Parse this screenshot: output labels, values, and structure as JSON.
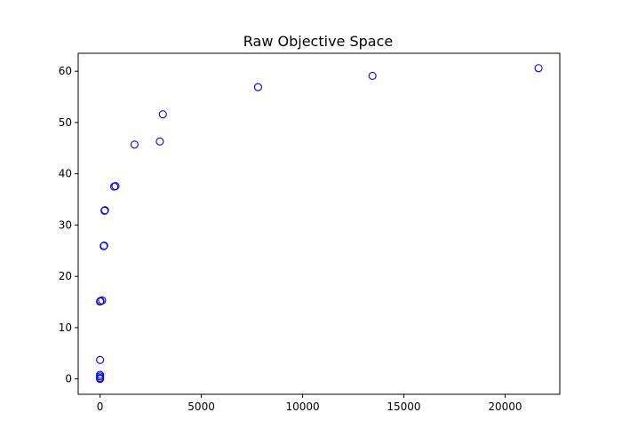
{
  "chart_data": {
    "type": "scatter",
    "title": "Raw Objective Space",
    "xlabel": "",
    "ylabel": "",
    "xlim": [
      -1080,
      22700
    ],
    "ylim": [
      -3.0,
      63.5
    ],
    "xticks": [
      0,
      5000,
      10000,
      15000,
      20000
    ],
    "xtick_labels": [
      "0",
      "5000",
      "10000",
      "15000",
      "20000"
    ],
    "yticks": [
      0,
      10,
      20,
      30,
      40,
      50,
      60
    ],
    "ytick_labels": [
      "0",
      "10",
      "20",
      "30",
      "40",
      "50",
      "60"
    ],
    "grid": false,
    "marker": "open-circle",
    "marker_color": "#0000ff",
    "series": [
      {
        "x": [
          0,
          0,
          0,
          0,
          0,
          0,
          20,
          100,
          180,
          200,
          220,
          240,
          700,
          760,
          1700,
          2950,
          3100,
          7800,
          13450,
          21650
        ],
        "y": [
          0.0,
          0.2,
          0.5,
          0.8,
          3.7,
          15.1,
          15.2,
          15.3,
          25.9,
          26.0,
          32.8,
          32.9,
          37.5,
          37.6,
          45.7,
          46.3,
          51.6,
          56.9,
          59.1,
          60.6
        ]
      }
    ]
  }
}
